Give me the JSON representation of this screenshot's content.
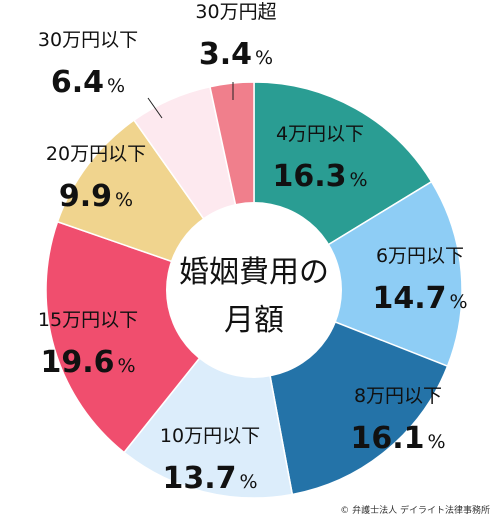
{
  "chart_data": {
    "type": "pie",
    "style": "donut",
    "title": "婚姻費用の月額",
    "center_lines": [
      "婚姻費用の",
      "月額"
    ],
    "percent_sign": "%",
    "slices": [
      {
        "label": "4万円以下",
        "value": 16.3,
        "value_text": "16.3",
        "color": "#2a9d93"
      },
      {
        "label": "6万円以下",
        "value": 14.7,
        "value_text": "14.7",
        "color": "#8ecdf5"
      },
      {
        "label": "8万円以下",
        "value": 16.1,
        "value_text": "16.1",
        "color": "#2473a8"
      },
      {
        "label": "10万円以下",
        "value": 13.7,
        "value_text": "13.7",
        "color": "#dcedfb"
      },
      {
        "label": "15万円以下",
        "value": 19.6,
        "value_text": "19.6",
        "color": "#f04e6e"
      },
      {
        "label": "20万円以下",
        "value": 9.9,
        "value_text": "9.9",
        "color": "#f0d48e"
      },
      {
        "label": "30万円以下",
        "value": 6.4,
        "value_text": "6.4",
        "color": "#fde9ef"
      },
      {
        "label": "30万円超",
        "value": 3.4,
        "value_text": "3.4",
        "color": "#f07f8c"
      }
    ]
  },
  "credit": "© 弁護士法人 デイライト法律事務所"
}
